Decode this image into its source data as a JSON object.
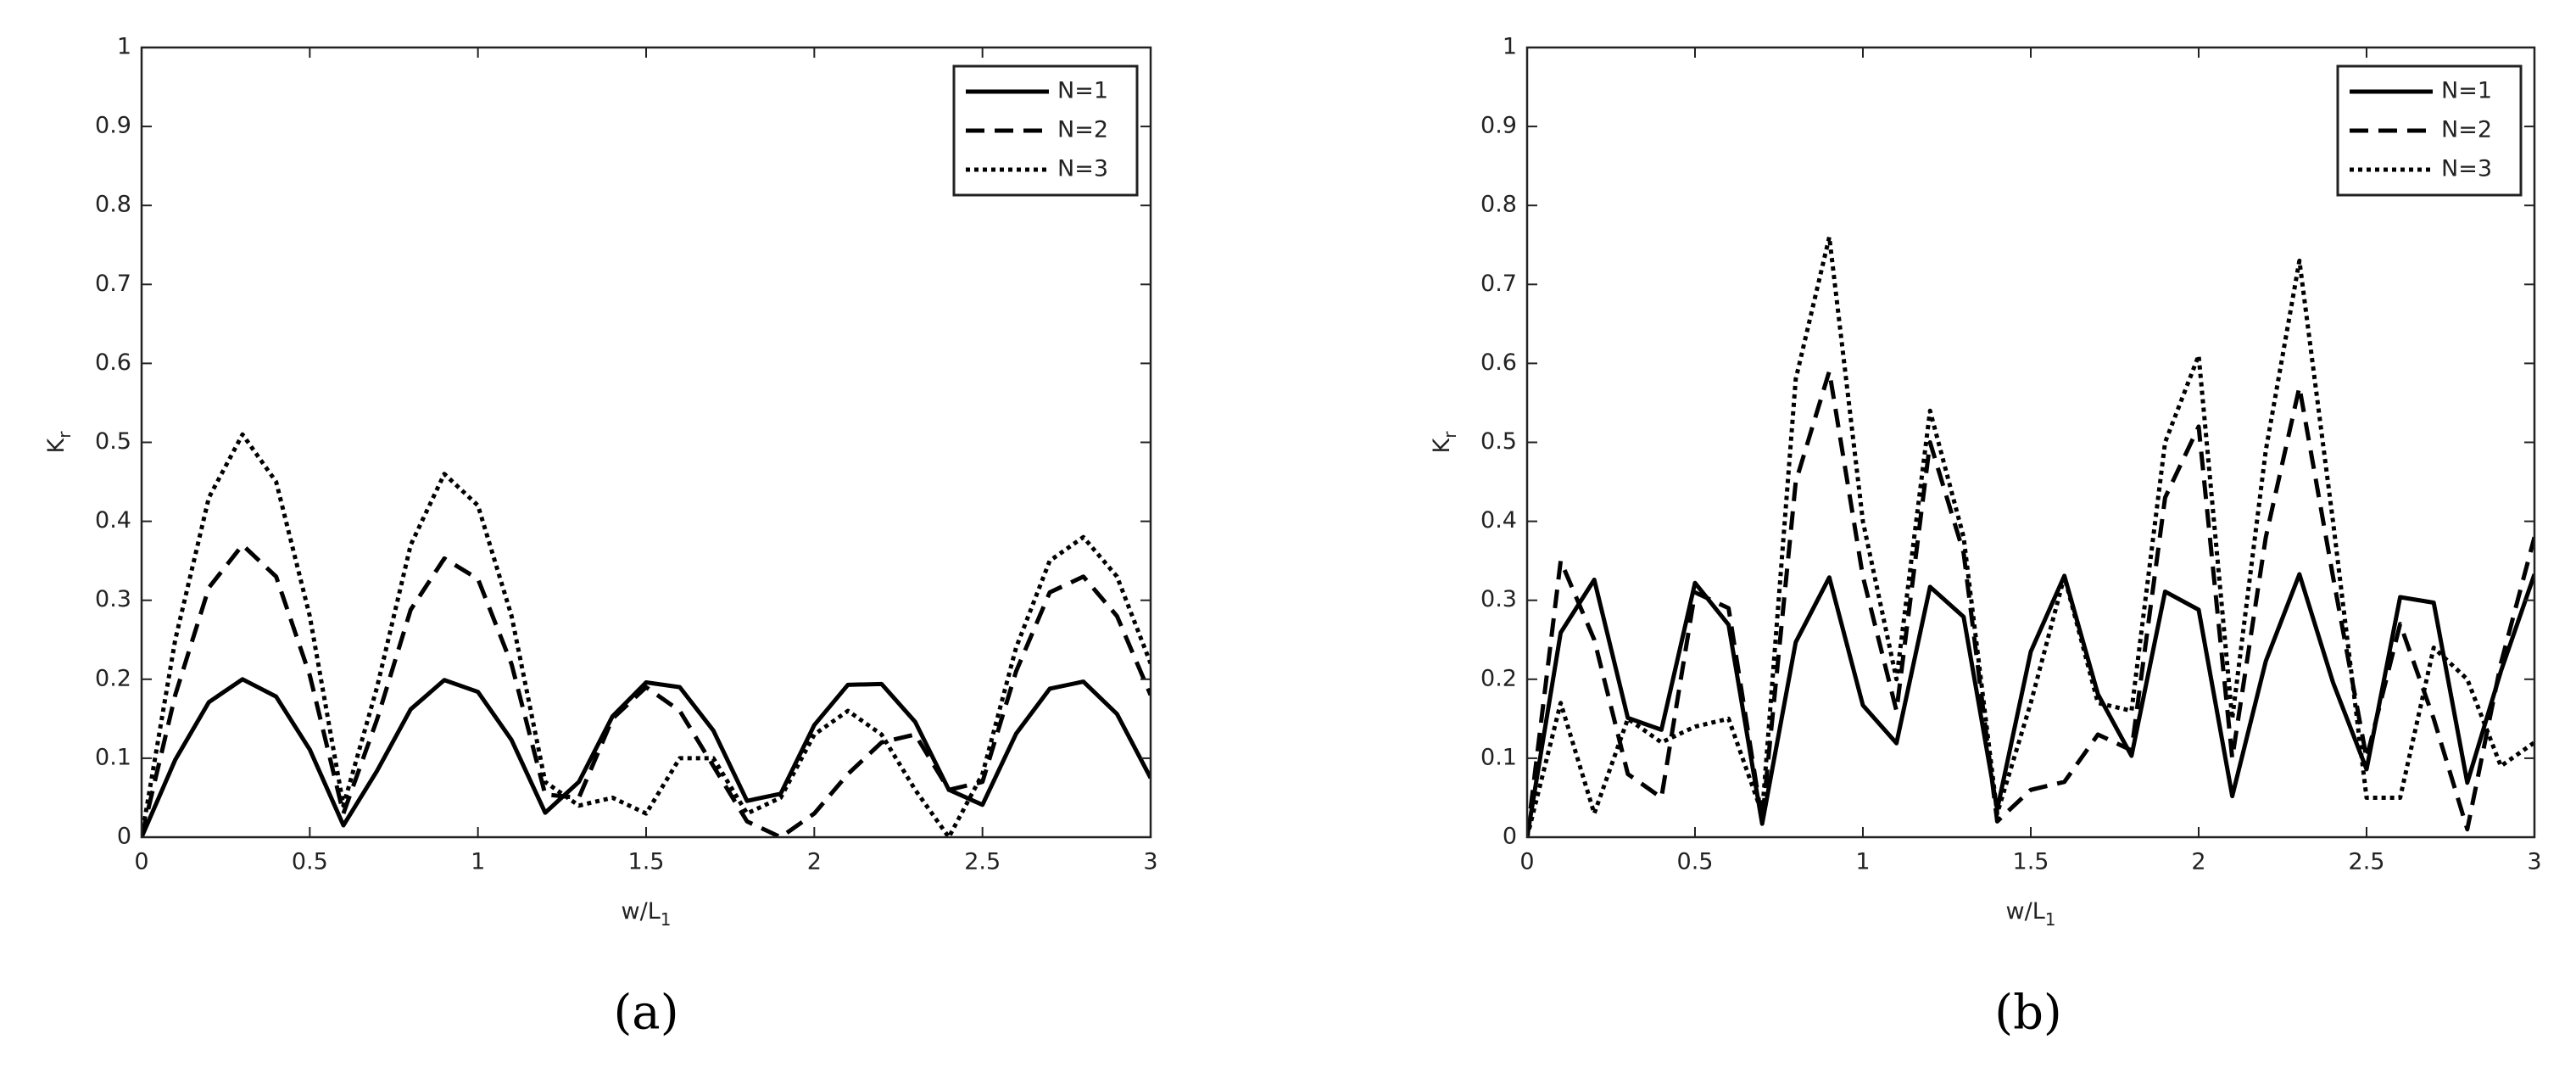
{
  "chart_data": [
    {
      "type": "line",
      "label": "(a)",
      "xlabel": {
        "main": "w/L",
        "sub": "1"
      },
      "ylabel": {
        "main": "K",
        "sub": "r"
      },
      "xlim": [
        0,
        3
      ],
      "ylim": [
        0,
        1
      ],
      "xticks": [
        0,
        0.5,
        1,
        1.5,
        2,
        2.5,
        3
      ],
      "yticks": [
        0,
        0.1,
        0.2,
        0.3,
        0.4,
        0.5,
        0.6,
        0.7,
        0.8,
        0.9,
        1
      ],
      "legend": "upper right",
      "x": [
        0,
        0.1,
        0.2,
        0.3,
        0.4,
        0.5,
        0.6,
        0.7,
        0.8,
        0.9,
        1,
        1.1,
        1.2,
        1.3,
        1.4,
        1.5,
        1.6,
        1.7,
        1.8,
        1.9,
        2,
        2.1,
        2.2,
        2.3,
        2.4,
        2.5,
        2.6,
        2.7,
        2.8,
        2.9,
        3
      ],
      "series": [
        {
          "name": "N=1",
          "color": "#000000",
          "dash": "solid",
          "values": [
            0,
            0.098,
            0.171,
            0.2,
            0.178,
            0.111,
            0.015,
            0.084,
            0.162,
            0.199,
            0.184,
            0.123,
            0.031,
            0.07,
            0.153,
            0.196,
            0.19,
            0.135,
            0.046,
            0.055,
            0.142,
            0.193,
            0.194,
            0.146,
            0.06,
            0.041,
            0.131,
            0.188,
            0.197,
            0.156,
            0.075
          ]
        },
        {
          "name": "N=2",
          "color": "#000000",
          "dash": "dashed",
          "values": [
            0,
            0.18,
            0.316,
            0.37,
            0.33,
            0.205,
            0.03,
            0.149,
            0.288,
            0.353,
            0.327,
            0.219,
            0.054,
            0.05,
            0.15,
            0.19,
            0.16,
            0.09,
            0.02,
            0,
            0.03,
            0.08,
            0.12,
            0.13,
            0.06,
            0.07,
            0.21,
            0.31,
            0.33,
            0.28,
            0.18
          ]
        },
        {
          "name": "N=3",
          "color": "#000000",
          "dash": "dotted",
          "values": [
            0,
            0.25,
            0.43,
            0.51,
            0.45,
            0.28,
            0.04,
            0.19,
            0.37,
            0.46,
            0.42,
            0.28,
            0.07,
            0.04,
            0.05,
            0.03,
            0.1,
            0.1,
            0.03,
            0.05,
            0.13,
            0.16,
            0.13,
            0.06,
            0,
            0.08,
            0.24,
            0.35,
            0.38,
            0.33,
            0.22
          ]
        }
      ]
    },
    {
      "type": "line",
      "label": "(b)",
      "xlabel": {
        "main": "w/L",
        "sub": "1"
      },
      "ylabel": {
        "main": "K",
        "sub": "r"
      },
      "xlim": [
        0,
        3
      ],
      "ylim": [
        0,
        1
      ],
      "xticks": [
        0,
        0.5,
        1,
        1.5,
        2,
        2.5,
        3
      ],
      "yticks": [
        0,
        0.1,
        0.2,
        0.3,
        0.4,
        0.5,
        0.6,
        0.7,
        0.8,
        0.9,
        1
      ],
      "legend": "upper right",
      "x": [
        0,
        0.1,
        0.2,
        0.3,
        0.4,
        0.5,
        0.6,
        0.7,
        0.8,
        0.9,
        1,
        1.1,
        1.2,
        1.3,
        1.4,
        1.5,
        1.6,
        1.7,
        1.8,
        1.9,
        2,
        2.1,
        2.2,
        2.3,
        2.4,
        2.5,
        2.6,
        2.7,
        2.8,
        2.9,
        3
      ],
      "series": [
        {
          "name": "N=1",
          "color": "#000000",
          "dash": "solid",
          "values": [
            0,
            0.259,
            0.326,
            0.151,
            0.136,
            0.322,
            0.269,
            0.017,
            0.247,
            0.329,
            0.167,
            0.119,
            0.317,
            0.279,
            0.035,
            0.235,
            0.331,
            0.181,
            0.103,
            0.311,
            0.288,
            0.052,
            0.223,
            0.333,
            0.196,
            0.086,
            0.304,
            0.297,
            0.069,
            0.21,
            0.333
          ]
        },
        {
          "name": "N=2",
          "color": "#000000",
          "dash": "dashed",
          "values": [
            0,
            0.35,
            0.25,
            0.08,
            0.05,
            0.31,
            0.29,
            0.02,
            0.45,
            0.59,
            0.33,
            0.16,
            0.5,
            0.36,
            0.02,
            0.06,
            0.07,
            0.13,
            0.11,
            0.43,
            0.52,
            0.1,
            0.38,
            0.57,
            0.33,
            0.1,
            0.27,
            0.15,
            0.01,
            0.22,
            0.38
          ]
        },
        {
          "name": "N=3",
          "color": "#000000",
          "dash": "dotted",
          "values": [
            0,
            0.17,
            0.03,
            0.15,
            0.12,
            0.14,
            0.15,
            0.03,
            0.58,
            0.76,
            0.4,
            0.2,
            0.54,
            0.38,
            0.03,
            0.17,
            0.33,
            0.17,
            0.16,
            0.5,
            0.61,
            0.15,
            0.49,
            0.73,
            0.4,
            0.05,
            0.05,
            0.24,
            0.2,
            0.09,
            0.12
          ]
        }
      ]
    }
  ]
}
